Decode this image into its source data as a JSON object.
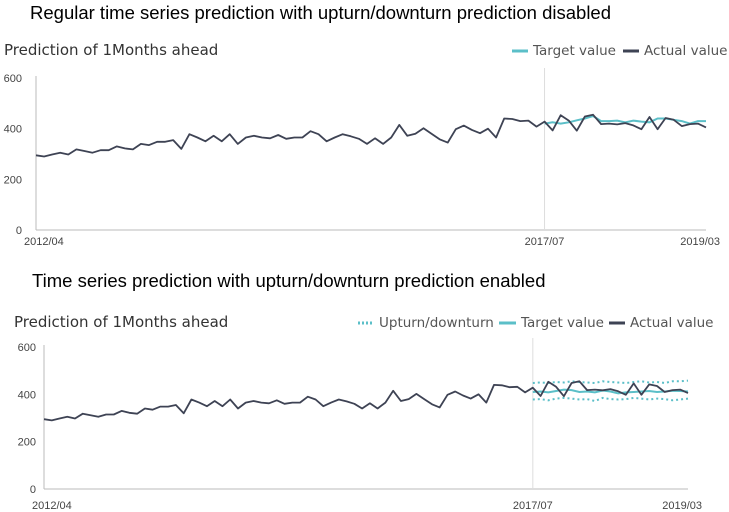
{
  "headings": {
    "top": "Regular time series prediction with upturn/downturn  prediction disabled",
    "bottom": "Time series prediction with upturn/downturn  prediction enabled"
  },
  "colors": {
    "actual": "#3e4354",
    "target": "#5bbfc8",
    "band": "#5bbfc8",
    "axis": "#bbbbbb",
    "split": "#dddddd"
  },
  "chart_data": [
    {
      "type": "line",
      "title": "Prediction of 1Months ahead",
      "x_tick_labels": [
        "2012/04",
        "2017/07",
        "2019/03"
      ],
      "x_range": [
        "2012/04",
        "2019/03"
      ],
      "ylim": [
        0,
        600
      ],
      "y_ticks": [
        0,
        200,
        400,
        600
      ],
      "grid": false,
      "legend_position": "top-right",
      "legend": [
        "Target value",
        "Actual value"
      ],
      "series": [
        {
          "name": "Actual value",
          "start": "2012/04",
          "values": [
            295,
            290,
            298,
            305,
            298,
            318,
            312,
            305,
            315,
            315,
            330,
            322,
            318,
            340,
            335,
            348,
            348,
            355,
            320,
            378,
            365,
            350,
            372,
            350,
            378,
            340,
            365,
            372,
            365,
            362,
            375,
            360,
            365,
            365,
            390,
            378,
            350,
            365,
            378,
            370,
            360,
            340,
            362,
            340,
            365,
            415,
            372,
            380,
            402,
            380,
            358,
            345,
            398,
            412,
            395,
            382,
            400,
            365,
            440,
            438,
            430,
            432,
            408,
            428,
            393,
            453,
            432,
            392,
            448,
            455,
            418,
            420,
            417,
            422,
            413,
            398,
            446,
            398,
            442,
            435,
            410,
            418,
            420,
            405
          ]
        },
        {
          "name": "Target value",
          "start": "2017/07",
          "values": [
            420,
            425,
            420,
            425,
            433,
            440,
            450,
            430,
            430,
            432,
            425,
            432,
            428,
            425,
            440,
            440,
            435,
            430,
            420,
            430,
            430
          ]
        }
      ]
    },
    {
      "type": "line",
      "title": "Prediction of 1Months ahead",
      "x_tick_labels": [
        "2012/04",
        "2017/07",
        "2019/03"
      ],
      "x_range": [
        "2012/04",
        "2019/03"
      ],
      "ylim": [
        0,
        600
      ],
      "y_ticks": [
        0,
        200,
        400,
        600
      ],
      "grid": false,
      "legend_position": "top-right",
      "legend": [
        "Upturn/downturn",
        "Target value",
        "Actual value"
      ],
      "series": [
        {
          "name": "Actual value",
          "start": "2012/04",
          "values": [
            295,
            290,
            298,
            305,
            298,
            318,
            312,
            305,
            315,
            315,
            330,
            322,
            318,
            340,
            335,
            348,
            348,
            355,
            320,
            378,
            365,
            350,
            372,
            350,
            378,
            340,
            365,
            372,
            365,
            362,
            375,
            360,
            365,
            365,
            390,
            378,
            350,
            365,
            378,
            370,
            360,
            340,
            362,
            340,
            365,
            415,
            372,
            380,
            402,
            380,
            358,
            345,
            398,
            412,
            395,
            382,
            400,
            365,
            440,
            438,
            430,
            432,
            408,
            428,
            393,
            453,
            432,
            392,
            448,
            455,
            418,
            420,
            417,
            422,
            413,
            398,
            446,
            398,
            442,
            435,
            410,
            418,
            420,
            405
          ]
        },
        {
          "name": "Target value",
          "start": "2017/07",
          "values": [
            410,
            412,
            408,
            414,
            420,
            418,
            410,
            412,
            408,
            416,
            412,
            404,
            408,
            410,
            412,
            414,
            410,
            412,
            415,
            414,
            412
          ]
        },
        {
          "name": "Upturn/downturn",
          "start": "2017/07",
          "upper": [
            448,
            450,
            448,
            452,
            450,
            455,
            452,
            450,
            448,
            455,
            452,
            450,
            448,
            452,
            455,
            450,
            452,
            448,
            455,
            455,
            458
          ],
          "lower": [
            378,
            380,
            375,
            382,
            385,
            382,
            378,
            380,
            372,
            385,
            380,
            378,
            380,
            385,
            382,
            378,
            382,
            380,
            375,
            378,
            382
          ]
        }
      ]
    }
  ]
}
